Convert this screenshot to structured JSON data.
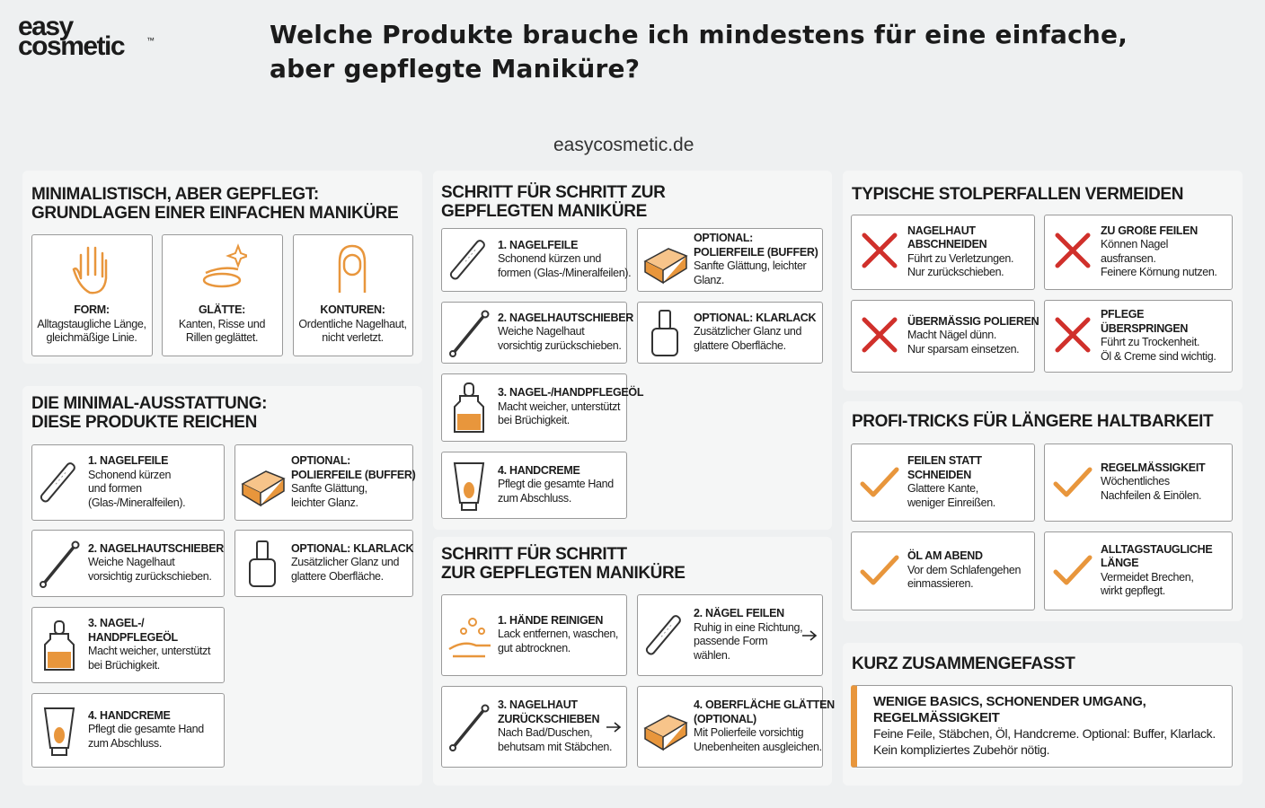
{
  "header": {
    "logo": [
      "easy",
      "cosmetic"
    ],
    "trademark": "™",
    "title": [
      "Welche Produkte brauche ich mindestens für eine einfache,",
      "aber gepflegte Maniküre?"
    ],
    "site": "easycosmetic.de"
  },
  "panels": [
    {
      "title": [
        "MINIMALISTISCH, ABER GEPFLEGT:",
        "GRUNDLAGEN EINER EINFACHEN MANIKÜRE"
      ],
      "cards": [
        {
          "title": [
            "FORM:"
          ],
          "text": [
            "Alltagstaugliche Länge,",
            "gleichmäßige Linie."
          ]
        },
        {
          "title": [
            "GLÄTTE:"
          ],
          "text": [
            "Kanten, Risse und",
            "Rillen geglättet."
          ]
        },
        {
          "title": [
            "KONTUREN:"
          ],
          "text": [
            "Ordentliche Nagelhaut,",
            "nicht verletzt."
          ]
        }
      ]
    },
    {
      "title": [
        "DIE MINIMAL-AUSSTATTUNG:",
        "DIESE PRODUKTE REICHEN"
      ],
      "cards": [
        {
          "title": [
            "1. NAGELFEILE"
          ],
          "text": [
            "Schonend kürzen",
            "und formen",
            "(Glas-/Mineralfeilen)."
          ]
        },
        {
          "title": [
            "OPTIONAL:",
            "POLIERFEILE (BUFFER)"
          ],
          "text": [
            "Sanfte Glättung,",
            "leichter Glanz."
          ]
        },
        {
          "title": [
            "2. NAGELHAUTSCHIEBER"
          ],
          "text": [
            "Weiche Nagelhaut",
            "vorsichtig zurückschieben."
          ]
        },
        {
          "title": [
            "OPTIONAL: KLARLACK"
          ],
          "text": [
            "Zusätzlicher Glanz und",
            "glattere Oberfläche."
          ]
        },
        {
          "title": [
            "3. NAGEL-/",
            "HANDPFLEGEÖL"
          ],
          "text": [
            "Macht weicher, unterstützt",
            "bei Brüchigkeit."
          ]
        },
        {
          "title": [
            "4. HANDCREME"
          ],
          "text": [
            "Pflegt die gesamte Hand",
            "zum Abschluss."
          ]
        }
      ]
    },
    {
      "title": [
        "SCHRITT FÜR SCHRITT ZUR",
        "GEPFLEGTEN MANIKÜRE"
      ],
      "cards": [
        {
          "title": [
            "1. NAGELFEILE"
          ],
          "text": [
            "Schonend kürzen und",
            "formen (Glas-/Mineralfeilen)."
          ]
        },
        {
          "title": [
            "OPTIONAL:",
            "POLIERFEILE (BUFFER)"
          ],
          "text": [
            "Sanfte Glättung, leichter",
            "Glanz."
          ]
        },
        {
          "title": [
            "2. NAGELHAUTSCHIEBER"
          ],
          "text": [
            "Weiche Nagelhaut",
            "vorsichtig zurückschieben."
          ]
        },
        {
          "title": [
            "OPTIONAL: KLARLACK"
          ],
          "text": [
            "Zusätzlicher Glanz und",
            "glattere Oberfläche."
          ]
        },
        {
          "title": [
            "3. NAGEL-/HANDPFLEGEÖL"
          ],
          "text": [
            "Macht weicher, unterstützt",
            "bei Brüchigkeit."
          ]
        },
        {
          "title": [
            "4. HANDCREME"
          ],
          "text": [
            "Pflegt die gesamte Hand",
            "zum Abschluss."
          ]
        }
      ]
    },
    {
      "title": [
        "SCHRITT FÜR SCHRITT",
        "ZUR GEPFLEGTEN MANIKÜRE"
      ],
      "cards": [
        {
          "title": [
            "1. HÄNDE REINIGEN"
          ],
          "text": [
            "Lack entfernen, waschen,",
            "gut abtrocknen."
          ]
        },
        {
          "title": [
            "2. NÄGEL FEILEN"
          ],
          "text": [
            "Ruhig in eine Richtung,",
            "passende Form",
            "wählen."
          ]
        },
        {
          "title": [
            "3. NAGELHAUT",
            "ZURÜCKSCHIEBEN"
          ],
          "text": [
            "Nach Bad/Duschen,",
            "behutsam mit Stäbchen."
          ]
        },
        {
          "title": [
            "4. OBERFLÄCHE GLÄTTEN",
            "(OPTIONAL)"
          ],
          "text": [
            "Mit Polierfeile vorsichtig",
            "Unebenheiten ausgleichen."
          ]
        }
      ]
    },
    {
      "title": [
        "TYPISCHE STOLPERFALLEN VERMEIDEN"
      ],
      "cards": [
        {
          "title": [
            "NAGELHAUT",
            "ABSCHNEIDEN"
          ],
          "text": [
            "Führt zu Verletzungen.",
            "Nur zurückschieben."
          ]
        },
        {
          "title": [
            "ZU GROßE FEILEN"
          ],
          "text": [
            "Können Nagel",
            "ausfransen.",
            "Feinere Körnung nutzen."
          ]
        },
        {
          "title": [
            "ÜBERMÄSSIG POLIEREN"
          ],
          "text": [
            "Macht Nägel dünn.",
            "Nur sparsam einsetzen."
          ]
        },
        {
          "title": [
            "PFLEGE",
            "ÜBERSPRINGEN"
          ],
          "text": [
            "Führt zu Trockenheit.",
            "Öl & Creme sind wichtig."
          ]
        }
      ]
    },
    {
      "title": [
        "PROFI-TRICKS FÜR LÄNGERE HALTBARKEIT"
      ],
      "cards": [
        {
          "title": [
            "FEILEN STATT",
            "SCHNEIDEN"
          ],
          "text": [
            "Glattere Kante,",
            "weniger Einreißen."
          ]
        },
        {
          "title": [
            "REGELMÄSSIGKEIT"
          ],
          "text": [
            "Wöchentliches",
            "Nachfeilen & Einölen."
          ]
        },
        {
          "title": [
            "ÖL AM ABEND"
          ],
          "text": [
            "Vor dem Schlafengehen",
            "einmassieren."
          ]
        },
        {
          "title": [
            "ALLTAGSTAUGLICHE",
            "LÄNGE"
          ],
          "text": [
            "Vermeidet Brechen,",
            "wirkt gepflegt."
          ]
        }
      ]
    },
    {
      "title": [
        "KURZ ZUSAMMENGEFASST"
      ],
      "cards": [
        {
          "title": [
            "WENIGE BASICS, SCHONENDER UMGANG,",
            "REGELMÄSSIGKEIT"
          ],
          "text": [
            "Feine Feile, Stäbchen, Öl, Handcreme. Optional: Buffer, Klarlack.",
            "Kein kompliziertes Zubehör nötig."
          ]
        }
      ]
    }
  ]
}
